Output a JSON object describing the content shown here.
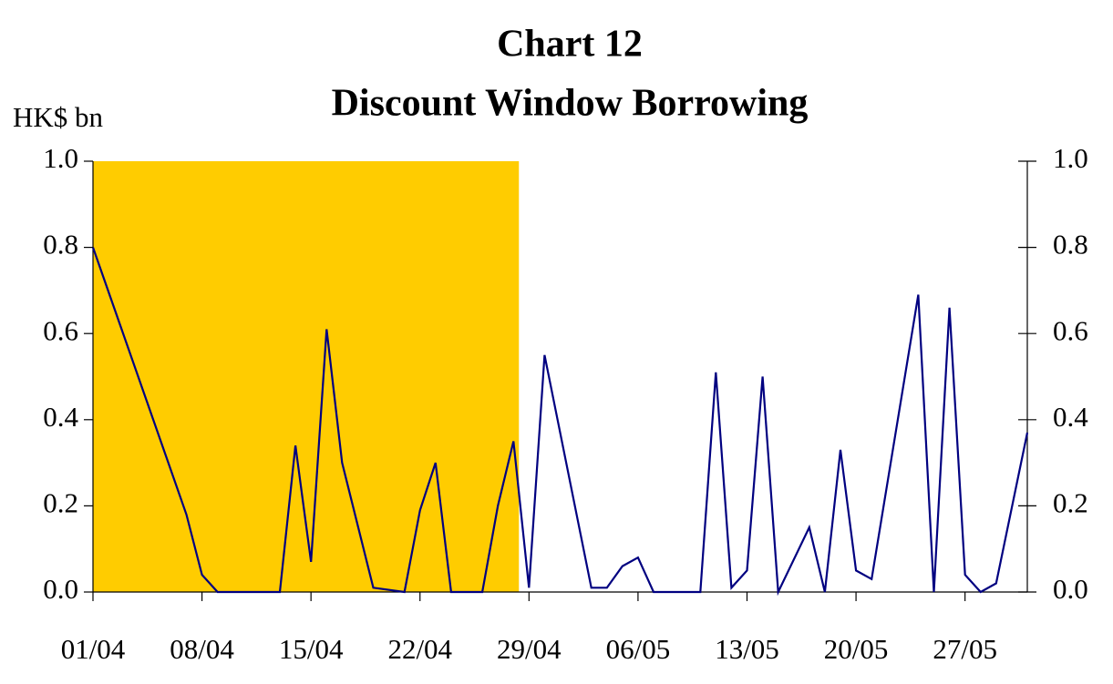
{
  "chart_data": {
    "type": "line",
    "title": [
      "Chart 12",
      "Discount Window Borrowing"
    ],
    "ylabel": "HK$ bn",
    "x": [
      "01/04",
      "07/04",
      "08/04",
      "09/04",
      "13/04",
      "14/04",
      "15/04",
      "16/04",
      "17/04",
      "19/04",
      "21/04",
      "22/04",
      "23/04",
      "24/04",
      "26/04",
      "27/04",
      "28/04",
      "29/04",
      "30/04",
      "03/05",
      "04/05",
      "05/05",
      "06/05",
      "07/05",
      "10/05",
      "11/05",
      "12/05",
      "13/05",
      "14/05",
      "15/05",
      "17/05",
      "18/05",
      "19/05",
      "20/05",
      "21/05",
      "24/05",
      "25/05",
      "26/05",
      "27/05",
      "28/05",
      "29/05",
      "31/05"
    ],
    "values": [
      0.8,
      0.18,
      0.04,
      0.0,
      0.0,
      0.34,
      0.07,
      0.61,
      0.3,
      0.01,
      0.0,
      0.19,
      0.3,
      0.0,
      0.0,
      0.2,
      0.35,
      0.01,
      0.55,
      0.01,
      0.01,
      0.06,
      0.08,
      0.0,
      0.0,
      0.51,
      0.01,
      0.05,
      0.5,
      0.0,
      0.15,
      0.0,
      0.33,
      0.05,
      0.03,
      0.69,
      0.0,
      0.66,
      0.04,
      0.0,
      0.02,
      0.37
    ],
    "color": "#000080",
    "shade": {
      "from": "01/04",
      "to": "28/04",
      "color": "#ffcc00"
    },
    "xlim": [
      "01/04",
      "31/05"
    ],
    "xticks": [
      "01/04",
      "08/04",
      "15/04",
      "22/04",
      "29/04",
      "06/05",
      "13/05",
      "20/05",
      "27/05"
    ],
    "ylim": [
      0,
      1
    ],
    "yticks": [
      {
        "value": 0,
        "label": "0.0"
      },
      {
        "value": 0.2,
        "label": "0.2"
      },
      {
        "value": 0.4,
        "label": "0.4"
      },
      {
        "value": 0.6,
        "label": "0.6"
      },
      {
        "value": 0.8,
        "label": "0.8"
      },
      {
        "value": 1,
        "label": "1.0"
      }
    ],
    "y2lim": [
      0,
      1
    ],
    "y2ticks": [
      {
        "value": 0,
        "label": "0.0"
      },
      {
        "value": 0.2,
        "label": "0.2"
      },
      {
        "value": 0.4,
        "label": "0.4"
      },
      {
        "value": 0.6,
        "label": "0.6"
      },
      {
        "value": 0.8,
        "label": "0.8"
      },
      {
        "value": 1,
        "label": "1.0"
      }
    ]
  }
}
